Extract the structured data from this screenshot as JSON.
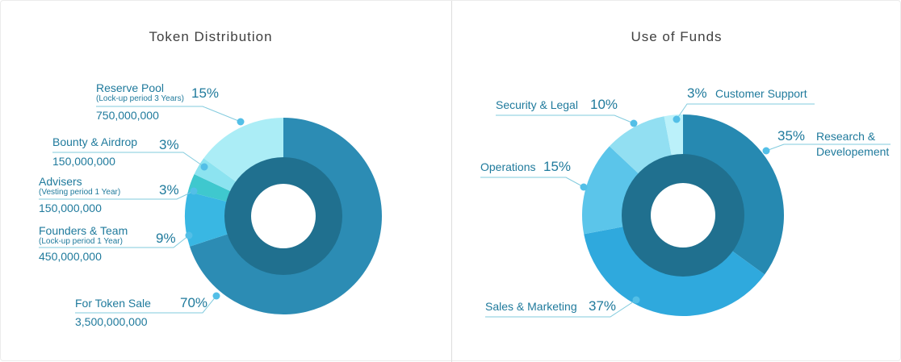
{
  "chart_data": [
    {
      "type": "pie",
      "subtype": "donut",
      "title": "Token Distribution",
      "legend_position": "callout-labels-left",
      "segments": [
        {
          "label": "For Token Sale",
          "note": "",
          "pct": "70%",
          "value": 70,
          "amount": "3,500,000,000",
          "color": "#2c8cb4"
        },
        {
          "label": "Founders & Team",
          "note": "(Lock-up period 1 Year)",
          "pct": "9%",
          "value": 9,
          "amount": "450,000,000",
          "color": "#39b7e3"
        },
        {
          "label": "Advisers",
          "note": "(Vesting period 1 Year)",
          "pct": "3%",
          "value": 3,
          "amount": "150,000,000",
          "color": "#3fc8ce"
        },
        {
          "label": "Bounty & Airdrop",
          "note": "",
          "pct": "3%",
          "value": 3,
          "amount": "150,000,000",
          "color": "#8ce3f0"
        },
        {
          "label": "Reserve Pool",
          "note": "(Lock-up period 3 Years)",
          "pct": "15%",
          "value": 15,
          "amount": "750,000,000",
          "color": "#abedf6"
        }
      ],
      "inner_ring_color": "#20708f",
      "hole_color": "#ffffff"
    },
    {
      "type": "pie",
      "subtype": "donut",
      "title": "Use of Funds",
      "legend_position": "callout-labels-around",
      "segments": [
        {
          "label": "Research & Developement",
          "pct": "35%",
          "value": 35,
          "color": "#2689b1"
        },
        {
          "label": "Sales & Marketing",
          "pct": "37%",
          "value": 37,
          "color": "#2fa9dd"
        },
        {
          "label": "Operations",
          "pct": "15%",
          "value": 15,
          "color": "#5bc5ea"
        },
        {
          "label": "Security & Legal",
          "pct": "10%",
          "value": 10,
          "color": "#92dff2"
        },
        {
          "label": "Customer Support",
          "pct": "3%",
          "value": 3,
          "color": "#bbf1fa"
        }
      ],
      "inner_ring_color": "#20708f",
      "hole_color": "#ffffff"
    }
  ],
  "styles": {
    "label_color": "#1f7a9c",
    "leader_line_color": "#82cbde",
    "dot_color": "#53bfe7",
    "title_color": "#404040",
    "divider_color": "#dddddd",
    "background": "#ffffff"
  }
}
